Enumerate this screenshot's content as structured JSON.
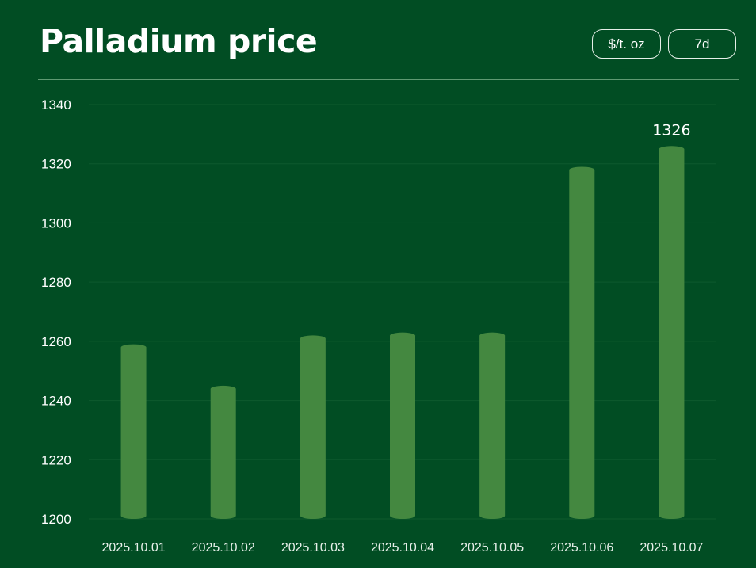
{
  "header": {
    "title": "Palladium price",
    "unit_label": "$/t. oz",
    "range_label": "7d"
  },
  "colors": {
    "background": "#014d23",
    "bar": "#448840",
    "grid": "#0e5a2e",
    "text": "#ffffff"
  },
  "chart_data": {
    "type": "bar",
    "title": "Palladium price",
    "categories": [
      "2025.10.01",
      "2025.10.02",
      "2025.10.03",
      "2025.10.04",
      "2025.10.05",
      "2025.10.06",
      "2025.10.07"
    ],
    "series": [
      {
        "values": [
          1259,
          1245,
          1262,
          1263,
          1263,
          1319,
          1326
        ]
      }
    ],
    "ylim": [
      1200,
      1340
    ],
    "yticks": [
      1200,
      1220,
      1240,
      1260,
      1280,
      1300,
      1320,
      1340
    ],
    "data_labels": [
      {
        "index": 6,
        "text": "1326"
      }
    ],
    "grid": true,
    "xlabel": "",
    "ylabel": ""
  }
}
